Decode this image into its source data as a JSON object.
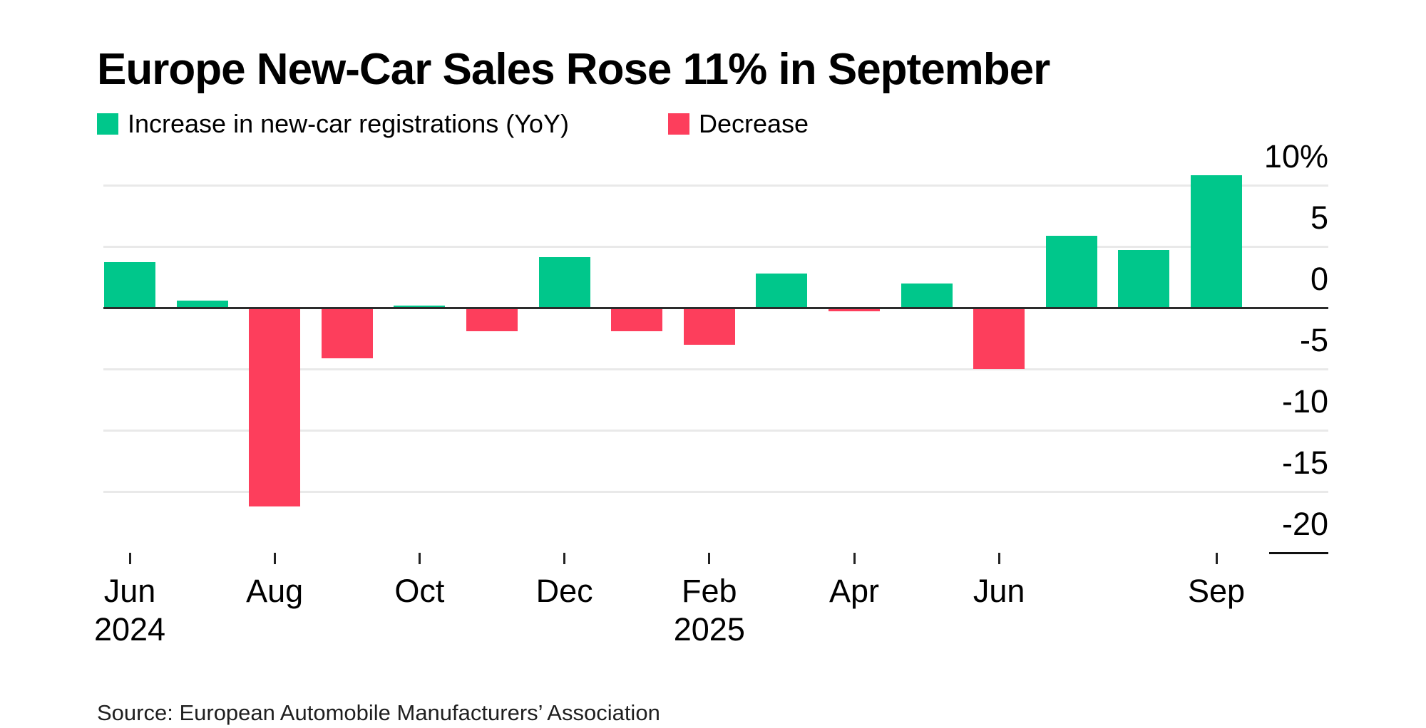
{
  "title": "Europe New-Car Sales Rose 11% in September",
  "legend": {
    "increase_label": "Increase in new-car registrations (YoY)",
    "decrease_label": "Decrease"
  },
  "source": "Source: European Automobile Manufacturers’ Association",
  "chart_data": {
    "type": "bar",
    "title": "Europe New-Car Sales Rose 11% in September",
    "categories": [
      "Jun 2024",
      "Jul 2024",
      "Aug 2024",
      "Sep 2024",
      "Oct 2024",
      "Nov 2024",
      "Dec 2024",
      "Jan 2025",
      "Feb 2025",
      "Mar 2025",
      "Apr 2025",
      "May 2025",
      "Jun 2025",
      "Jul 2025",
      "Aug 2025",
      "Sep 2025"
    ],
    "values": [
      3.7,
      0.6,
      -16.2,
      -4.1,
      0.2,
      -1.9,
      4.1,
      -1.9,
      -3.0,
      2.8,
      -0.3,
      2.0,
      -5.0,
      5.9,
      4.7,
      10.8
    ],
    "unit": "percent YoY",
    "ylim": [
      -20,
      10
    ],
    "ytick_values": [
      10,
      5,
      0,
      -5,
      -10,
      -15,
      -20
    ],
    "ytick_labels": [
      "10%",
      "5",
      "0",
      "-5",
      "-10",
      "-15",
      "-20"
    ],
    "xticks": [
      {
        "index": 0,
        "month": "Jun",
        "year": "2024"
      },
      {
        "index": 2,
        "month": "Aug",
        "year": ""
      },
      {
        "index": 4,
        "month": "Oct",
        "year": ""
      },
      {
        "index": 6,
        "month": "Dec",
        "year": ""
      },
      {
        "index": 8,
        "month": "Feb",
        "year": "2025"
      },
      {
        "index": 10,
        "month": "Apr",
        "year": ""
      },
      {
        "index": 12,
        "month": "Jun",
        "year": ""
      },
      {
        "index": 15,
        "month": "Sep",
        "year": ""
      }
    ],
    "grid": true,
    "legend_position": "top-left",
    "colors": {
      "increase": "#00c78b",
      "decrease": "#fd3e5c",
      "gridline": "#e9e9e9",
      "zero_line": "#2b2b2b",
      "text": "#000000"
    }
  }
}
